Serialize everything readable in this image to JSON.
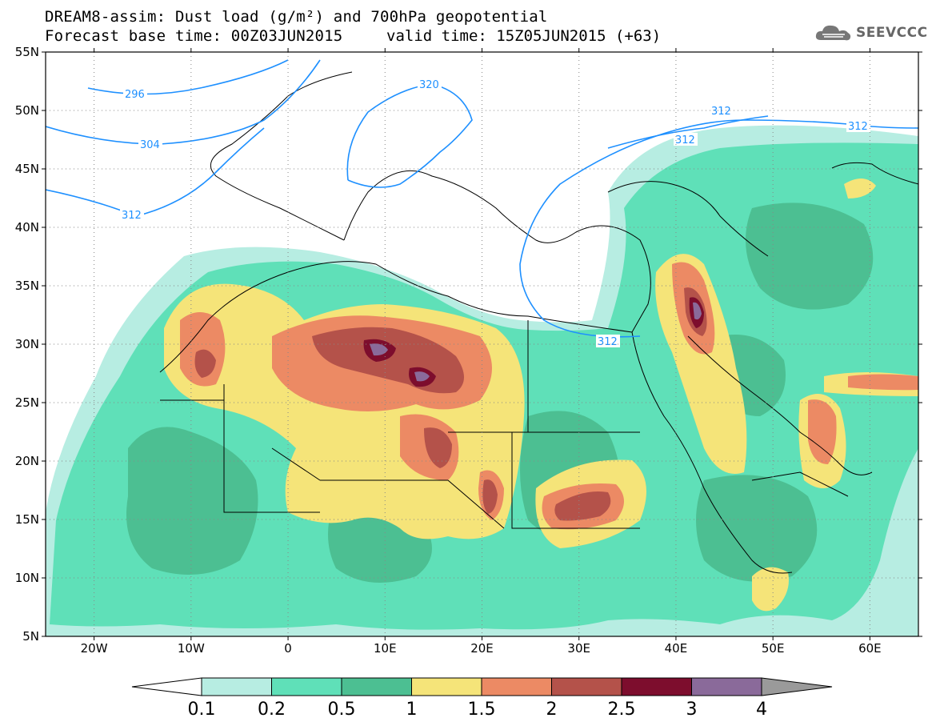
{
  "header": {
    "title_line1": "DREAM8-assim: Dust load (g/m²) and 700hPa geopotential",
    "title_line2": "Forecast base time: 00Z03JUN2015",
    "valid_time": "valid time: 15Z05JUN2015 (+63)",
    "logo_text": "SEEVCCC"
  },
  "axes": {
    "lat_labels": [
      "55N",
      "50N",
      "45N",
      "40N",
      "35N",
      "30N",
      "25N",
      "20N",
      "15N",
      "10N",
      "5N"
    ],
    "lon_labels": [
      "20W",
      "10W",
      "0",
      "10E",
      "20E",
      "30E",
      "40E",
      "50E",
      "60E"
    ]
  },
  "contour_labels": [
    "296",
    "304",
    "312",
    "320",
    "312",
    "312",
    "312",
    "312"
  ],
  "colorbar": {
    "ticks": [
      "0.1",
      "0.2",
      "0.5",
      "1",
      "1.5",
      "2",
      "2.5",
      "3",
      "4"
    ],
    "colors": [
      "#b7ede2",
      "#5fe0b8",
      "#4cbf92",
      "#f5e479",
      "#ec8a64",
      "#b4524a",
      "#7d0d2d",
      "#8a6a9a"
    ],
    "under_color": "#ffffff",
    "over_color": "#9a9a9a"
  },
  "colors": {
    "contour_line": "#1e90ff",
    "border_line": "#000000"
  }
}
